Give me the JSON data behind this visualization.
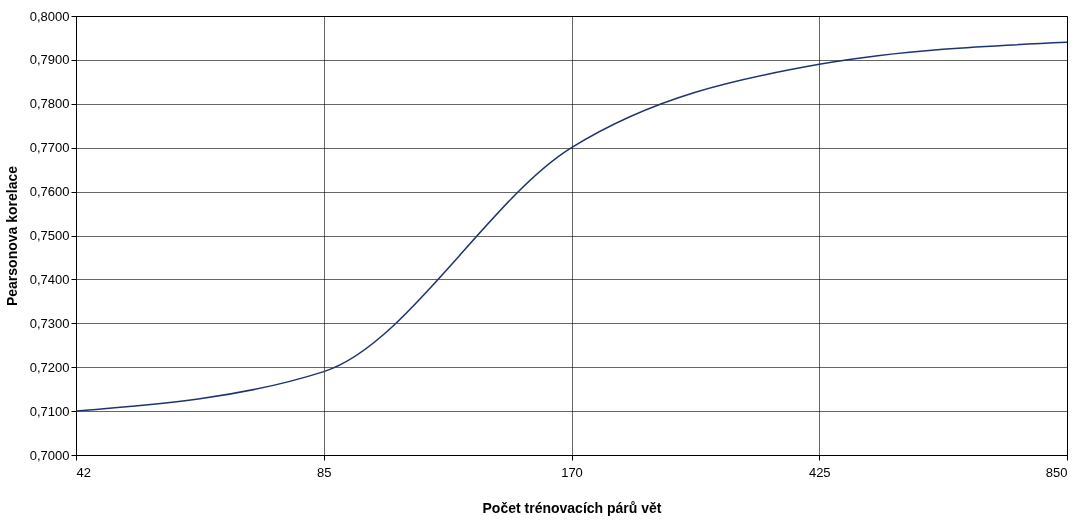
{
  "chart_data": {
    "type": "line",
    "xlabel": "Počet trénovacích párů vět",
    "ylabel": "Pearsonova korelace",
    "categories": [
      "42",
      "85",
      "170",
      "425",
      "850"
    ],
    "series": [
      {
        "color": "#1f3370",
        "values": [
          0.71,
          0.719,
          0.77,
          0.789,
          0.794
        ]
      }
    ],
    "ylim": [
      0.7,
      0.8
    ],
    "yticks": [
      {
        "value": 0.7,
        "label": "0,7000"
      },
      {
        "value": 0.71,
        "label": "0,7100"
      },
      {
        "value": 0.72,
        "label": "0,7200"
      },
      {
        "value": 0.73,
        "label": "0,7300"
      },
      {
        "value": 0.74,
        "label": "0,7400"
      },
      {
        "value": 0.75,
        "label": "0,7500"
      },
      {
        "value": 0.76,
        "label": "0,7600"
      },
      {
        "value": 0.77,
        "label": "0,7700"
      },
      {
        "value": 0.78,
        "label": "0,7800"
      },
      {
        "value": 0.79,
        "label": "0,7900"
      },
      {
        "value": 0.8,
        "label": "0,8000"
      }
    ],
    "grid": true,
    "marker": "none",
    "line_style": "solid",
    "legend": false
  }
}
